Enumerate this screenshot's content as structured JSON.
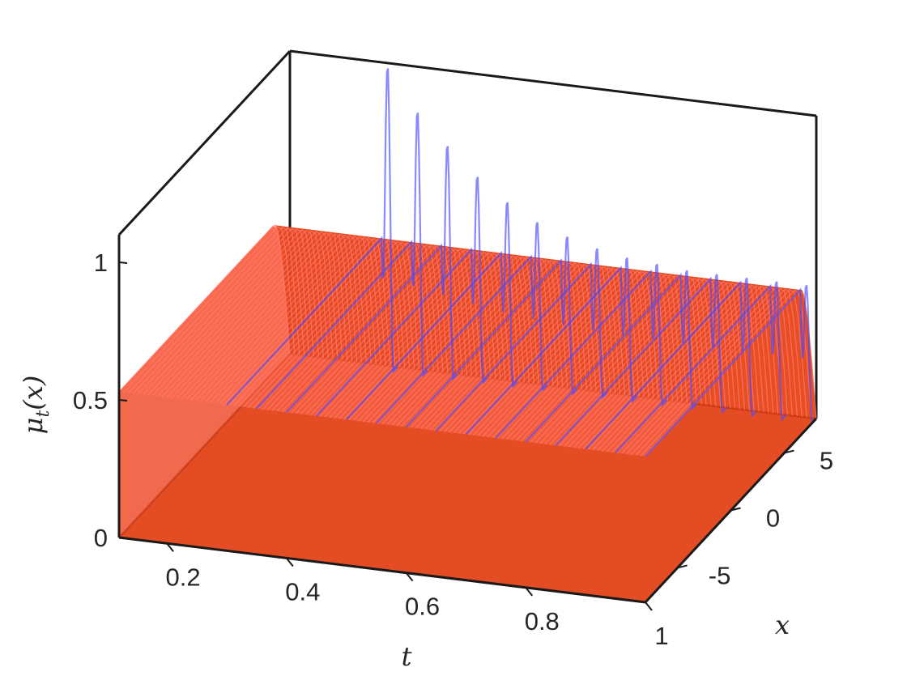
{
  "chart_data": {
    "type": "surface3d",
    "xlabel": "t",
    "ylabel": "x",
    "zlabel": "μ_t(x)",
    "zlabel_text": {
      "mu": "μ",
      "sub": "t",
      "rest": "(x)"
    },
    "t_ticks": [
      "0.2",
      "0.4",
      "0.6",
      "0.8",
      "1"
    ],
    "t_tick_values": [
      0.2,
      0.4,
      0.6,
      0.8,
      1.0
    ],
    "x_ticks": [
      "-5",
      "0",
      "5"
    ],
    "x_tick_values": [
      -5,
      0,
      5
    ],
    "z_ticks": [
      "0",
      "0.5",
      "1"
    ],
    "z_tick_values": [
      0,
      0.5,
      1
    ],
    "t_range": [
      0.12,
      1.0
    ],
    "x_range": [
      -8,
      8
    ],
    "z_range": [
      0,
      1.1
    ],
    "grid": false,
    "legend": "none",
    "colors": {
      "surface_fill": "#e23e10",
      "surface_lines": "#ff7b7b",
      "curves": "#4a4aff",
      "box": "#1a1a1a"
    },
    "series": [
      {
        "kind": "surface",
        "description_values": "approximately constant profile in t: mu(x) ~ 0.53 for x < 6.5, falling to 0 near x = 8",
        "plateau_value": 0.53,
        "x_edge": 6.5
      },
      {
        "kind": "curves",
        "t": [
          0.3,
          0.35,
          0.4,
          0.45,
          0.5,
          0.55,
          0.6,
          0.65,
          0.7,
          0.75,
          0.8,
          0.85,
          0.9,
          0.95,
          1.0
        ],
        "peak_near_back": [
          1.14,
          0.99,
          0.88,
          0.78,
          0.7,
          0.64,
          0.6,
          0.57,
          0.55,
          0.54,
          0.53,
          0.53,
          0.53,
          0.53,
          0.53
        ]
      }
    ]
  }
}
